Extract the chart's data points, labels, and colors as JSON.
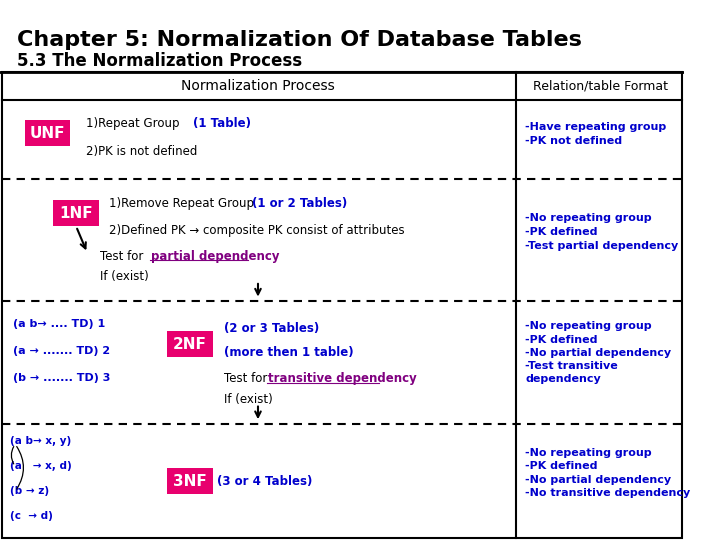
{
  "title": "Chapter 5: Normalization Of Database Tables",
  "subtitle": "5.3 The Normalization Process",
  "bg_color": "#ffffff",
  "header_left": "Normalization Process",
  "header_right": "Relation/table Format",
  "col_split": 0.755,
  "pink": "#E8006E",
  "blue": "#0000CC",
  "purple": "#800080",
  "dark": "#000000",
  "row_props": [
    0.18,
    0.28,
    0.28,
    0.26
  ],
  "row3_left": [
    "(a b→ .... TD) 1",
    "(a → ....... TD) 2",
    "(b → ....... TD) 3"
  ],
  "row4_left": [
    "(a b→ x, y)",
    "(a   → x, d)",
    "(b → z)",
    "(c  → d)"
  ]
}
